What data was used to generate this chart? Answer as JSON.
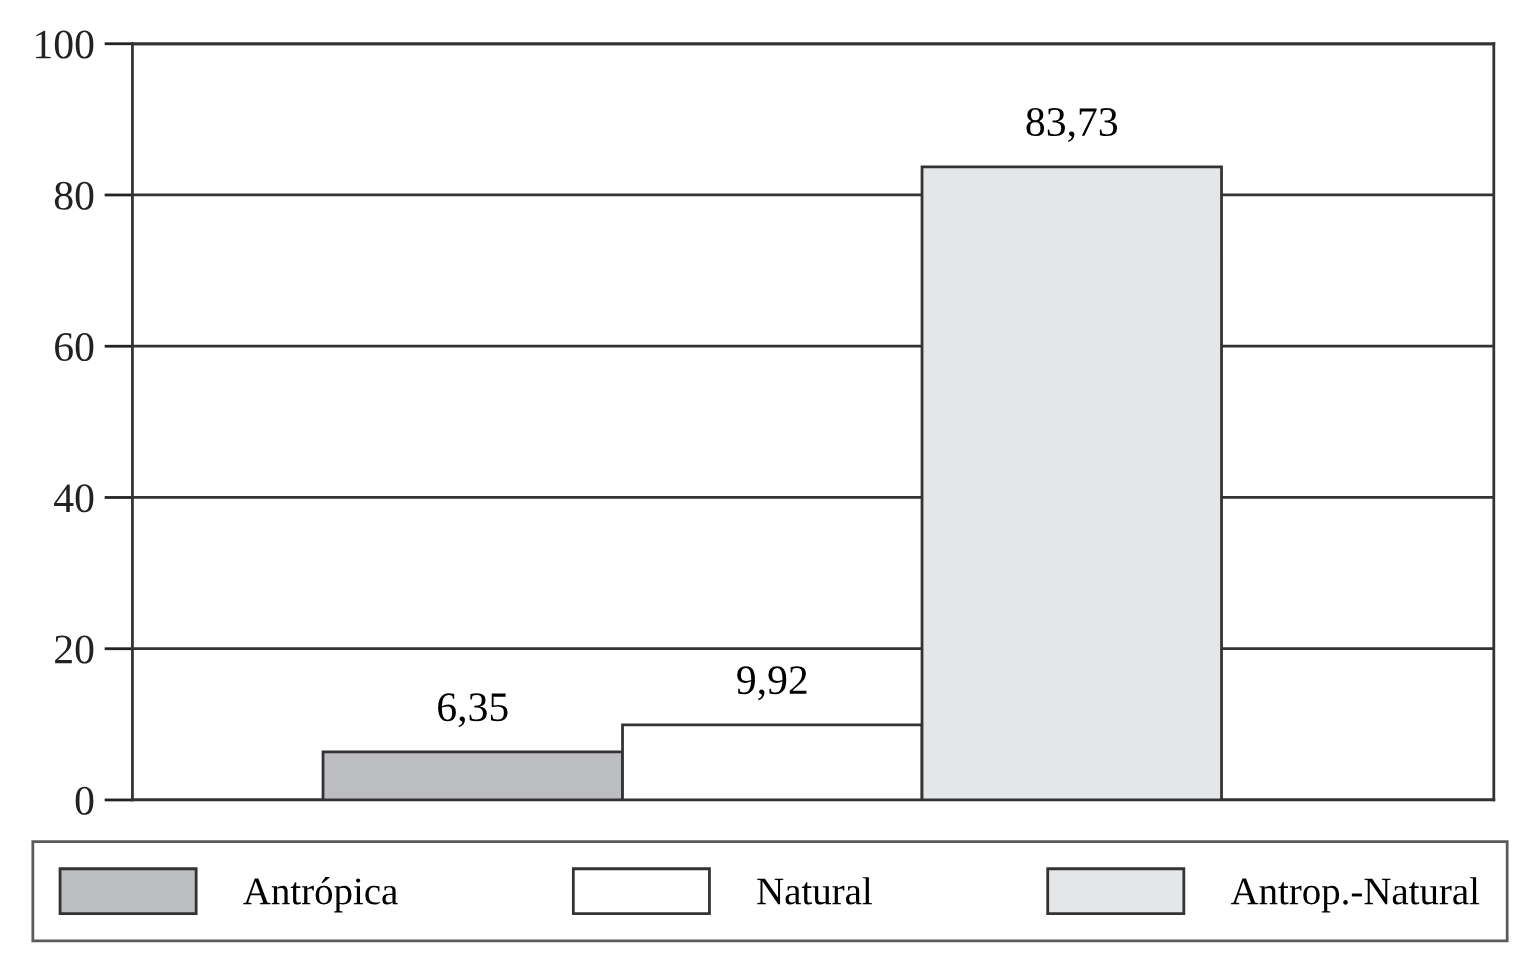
{
  "chart_data": {
    "type": "bar",
    "categories": [
      null
    ],
    "series": [
      {
        "name": "Antrópica",
        "color": "#bcbdc0",
        "values": [
          6.35
        ],
        "value_labels": [
          "6,35"
        ]
      },
      {
        "name": "Natural",
        "color": "#ffffff",
        "values": [
          9.92
        ],
        "value_labels": [
          "9,92"
        ]
      },
      {
        "name": "Antrop.-Natural",
        "color": "#e5e6e8",
        "values": [
          83.73
        ],
        "value_labels": [
          "83,73"
        ]
      }
    ],
    "ylim": [
      0,
      100
    ],
    "yticks": [
      0,
      20,
      40,
      60,
      80,
      100
    ],
    "grid": "y",
    "legend": "bottom",
    "tick_labels": "y"
  }
}
